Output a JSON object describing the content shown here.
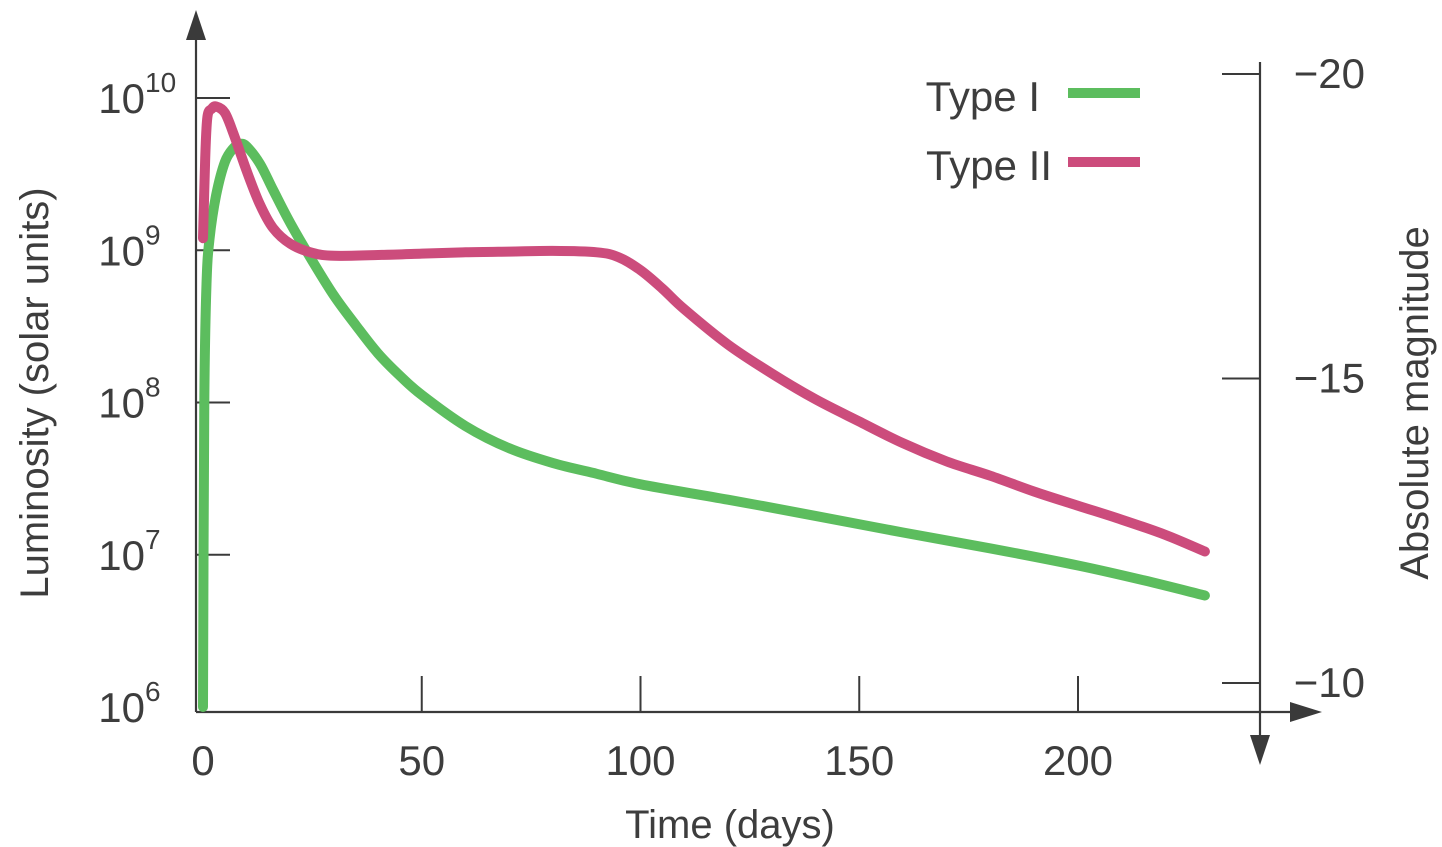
{
  "chart_data": {
    "type": "line",
    "xlabel": "Time (days)",
    "ylabel": "Luminosity (solar units)",
    "y2label": "Absolute magnitude",
    "xlim": [
      0,
      230
    ],
    "ylim": [
      1000000.0,
      10000000000.0
    ],
    "yscale": "log",
    "x_ticks": [
      0,
      50,
      100,
      150,
      200
    ],
    "y_ticks": [
      {
        "value": 1000000.0,
        "base": "10",
        "exp": "6"
      },
      {
        "value": 10000000.0,
        "base": "10",
        "exp": "7"
      },
      {
        "value": 100000000.0,
        "base": "10",
        "exp": "8"
      },
      {
        "value": 1000000000.0,
        "base": "10",
        "exp": "9"
      },
      {
        "value": 10000000000.0,
        "base": "10",
        "exp": "10"
      }
    ],
    "y2_ticks": [
      {
        "label": "−20",
        "luminosity": 10000000000.0
      },
      {
        "label": "−15",
        "luminosity": 100000000.0
      },
      {
        "label": "−10",
        "luminosity": 1000000.0
      }
    ],
    "legend_position": "top-right",
    "grid": false,
    "series": [
      {
        "name": "Type I",
        "color": "#5cbd5e",
        "points": [
          [
            0,
            1000000
          ],
          [
            0.3,
            100000000
          ],
          [
            0.8,
            600000000
          ],
          [
            1.5,
            1200000000
          ],
          [
            3,
            2300000000
          ],
          [
            5,
            3800000000
          ],
          [
            7,
            4700000000
          ],
          [
            8.5,
            5000000000
          ],
          [
            10,
            4800000000
          ],
          [
            13,
            3700000000
          ],
          [
            16,
            2500000000
          ],
          [
            20,
            1500000000
          ],
          [
            25,
            850000000
          ],
          [
            30,
            500000000
          ],
          [
            35,
            320000000
          ],
          [
            40,
            210000000
          ],
          [
            45,
            150000000
          ],
          [
            50,
            112000000
          ],
          [
            60,
            70000000
          ],
          [
            70,
            50000000
          ],
          [
            80,
            40000000
          ],
          [
            90,
            34000000
          ],
          [
            100,
            29000000
          ],
          [
            120,
            23000000
          ],
          [
            140,
            18000000
          ],
          [
            160,
            14000000
          ],
          [
            180,
            11000000
          ],
          [
            200,
            8500000
          ],
          [
            215,
            6800000
          ],
          [
            229,
            5400000
          ]
        ]
      },
      {
        "name": "Type II",
        "color": "#cc4c7c",
        "points": [
          [
            0,
            1200000000
          ],
          [
            0.5,
            4000000000
          ],
          [
            1,
            7500000000
          ],
          [
            2,
            8500000000
          ],
          [
            3,
            8800000000
          ],
          [
            5,
            8000000000
          ],
          [
            7,
            5800000000
          ],
          [
            10,
            3300000000
          ],
          [
            13,
            2000000000
          ],
          [
            16,
            1400000000
          ],
          [
            20,
            1100000000
          ],
          [
            25,
            960000000
          ],
          [
            30,
            920000000
          ],
          [
            40,
            930000000
          ],
          [
            50,
            950000000
          ],
          [
            60,
            970000000
          ],
          [
            70,
            980000000
          ],
          [
            80,
            990000000
          ],
          [
            90,
            970000000
          ],
          [
            95,
            900000000
          ],
          [
            100,
            740000000
          ],
          [
            105,
            560000000
          ],
          [
            110,
            410000000
          ],
          [
            120,
            240000000
          ],
          [
            130,
            155000000
          ],
          [
            140,
            105000000
          ],
          [
            150,
            75000000
          ],
          [
            160,
            54000000
          ],
          [
            170,
            41000000
          ],
          [
            180,
            33000000
          ],
          [
            190,
            26000000
          ],
          [
            200,
            21000000
          ],
          [
            210,
            17000000
          ],
          [
            220,
            13500000
          ],
          [
            229,
            10500000
          ]
        ]
      }
    ]
  }
}
